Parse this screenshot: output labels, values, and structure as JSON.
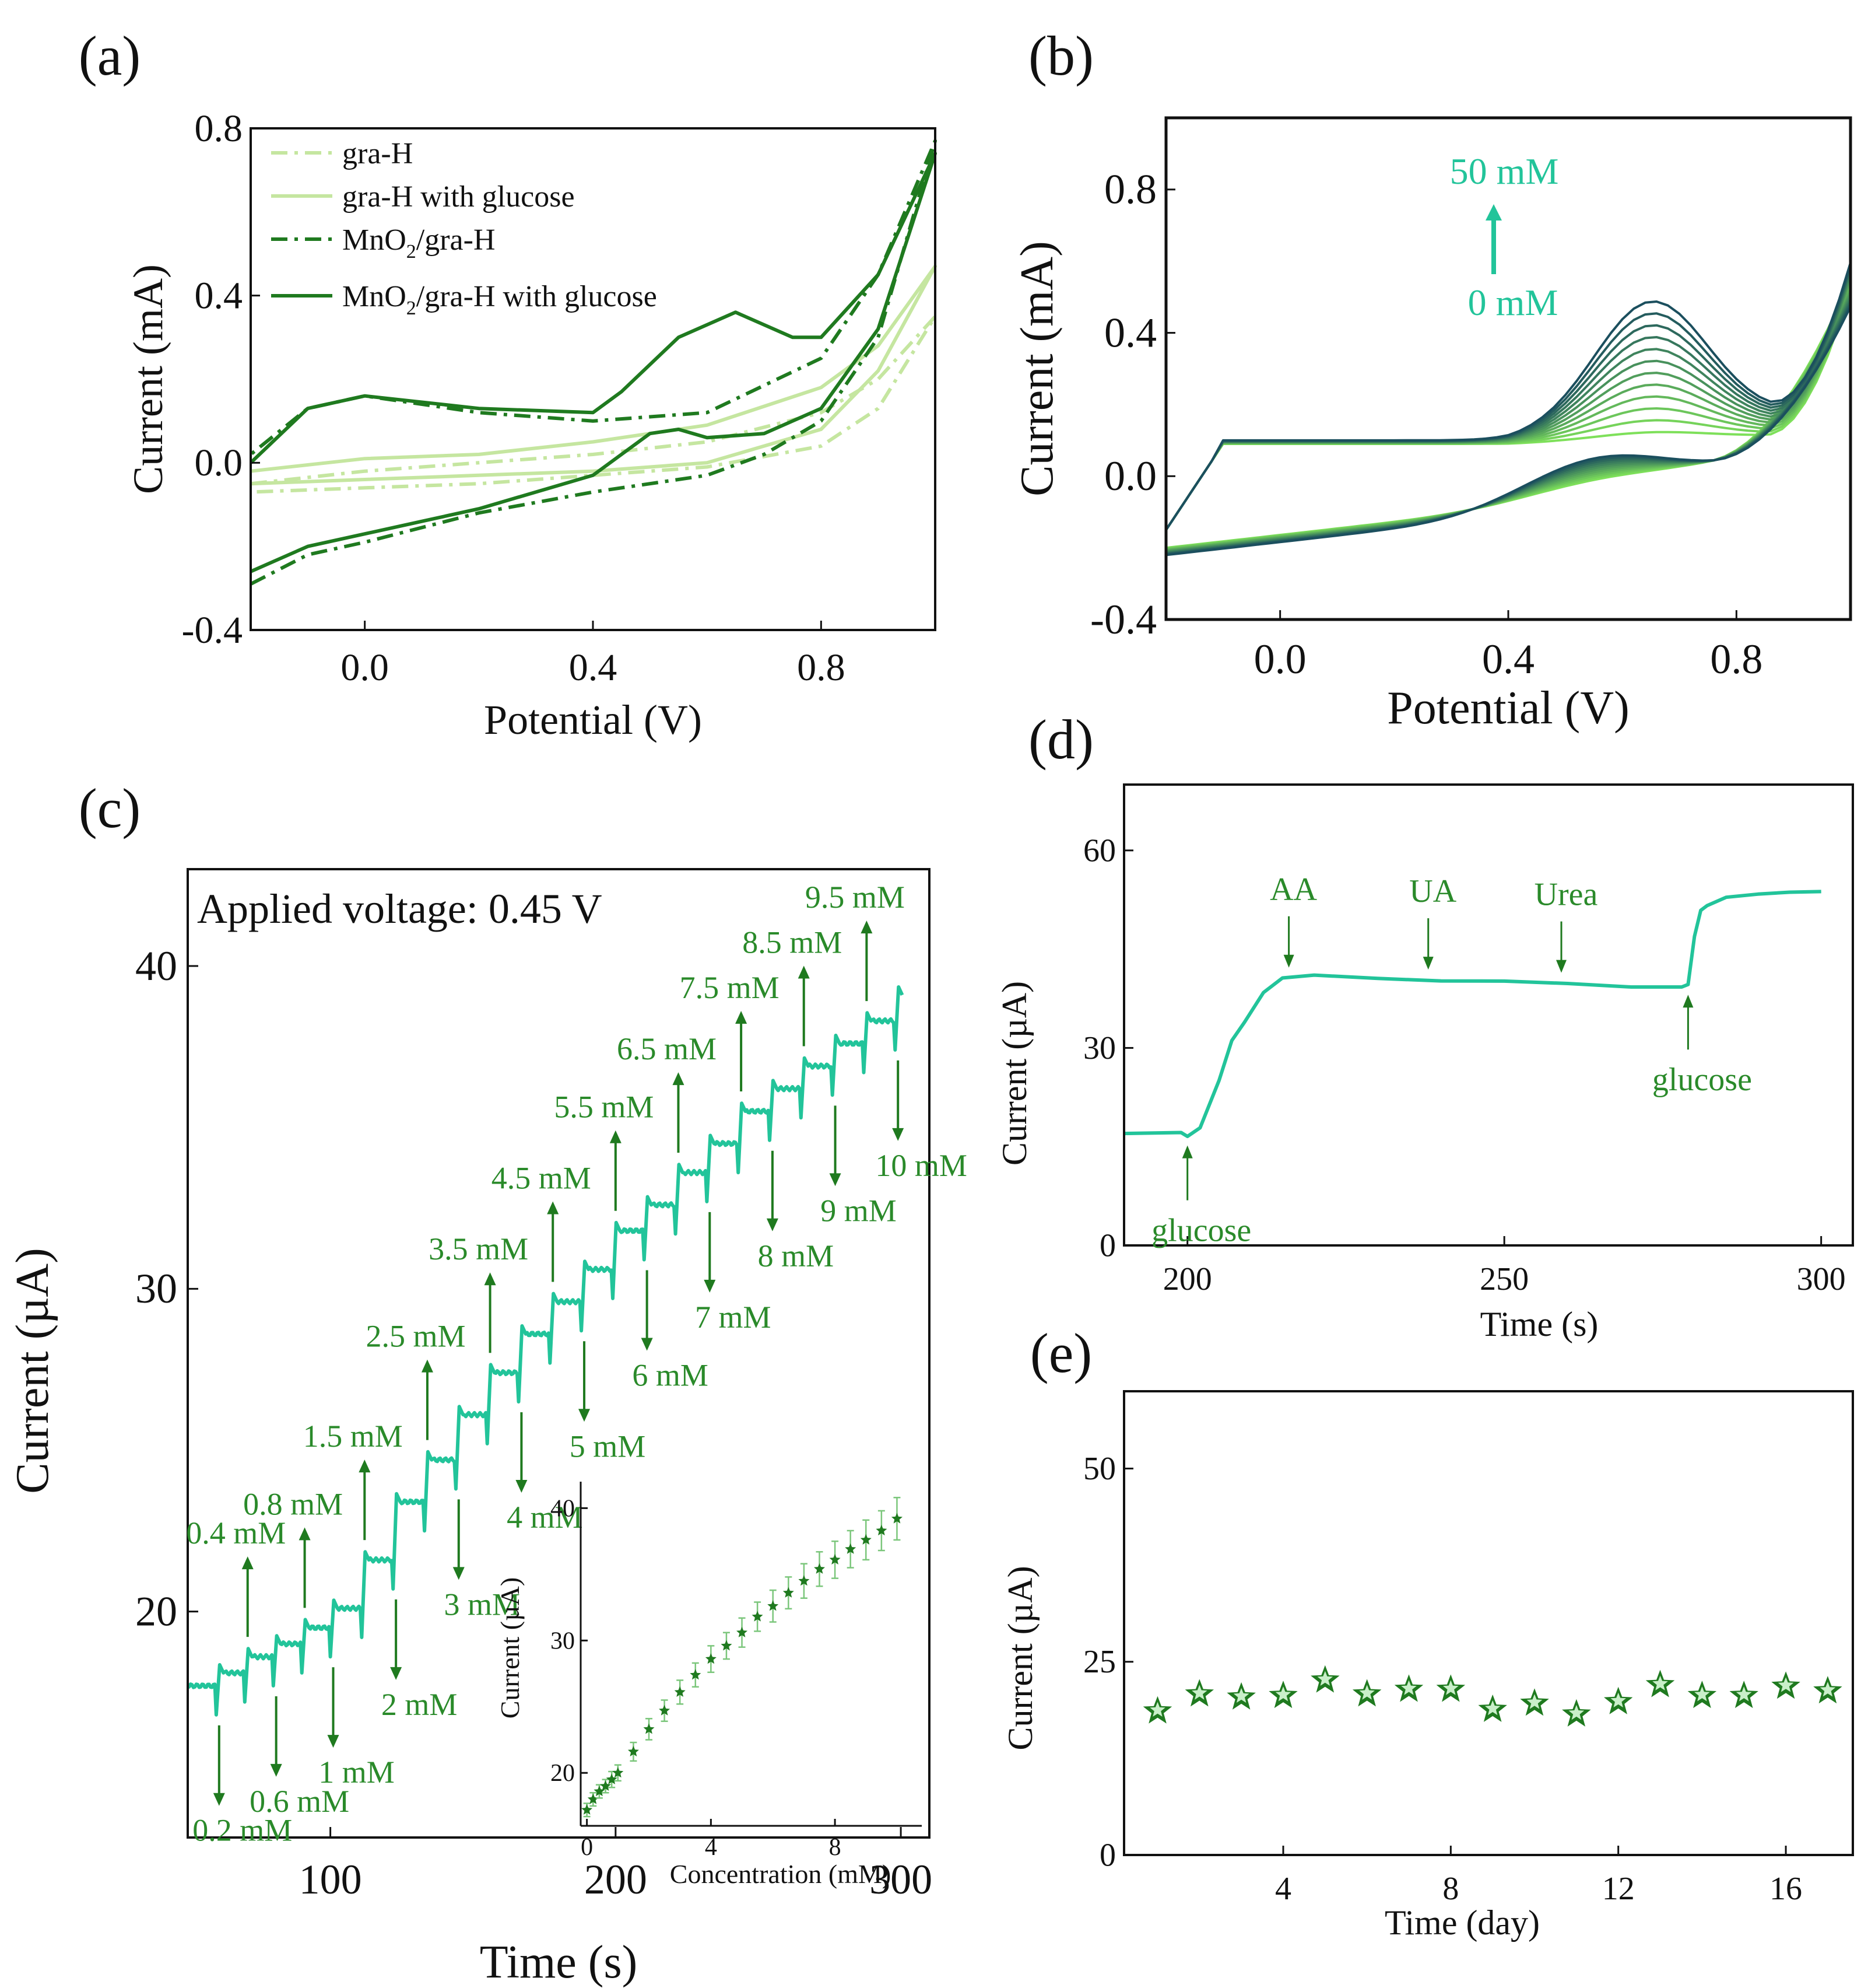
{
  "colors": {
    "lightGreen": "#c5e6a0",
    "darkGreen": "#1f7a1f",
    "annotGreen": "#2a8a2a",
    "teal": "#22c49a",
    "cvDark": "#1b4f5e",
    "cvLight": "#7ee05a",
    "cvMid": "#3a9a3a"
  },
  "chart_data": [
    {
      "panel_label": "(a)",
      "type": "line",
      "xlabel": "Potential (V)",
      "ylabel": "Current  (mA)",
      "xlim": [
        -0.2,
        1.0
      ],
      "ylim": [
        -0.4,
        0.8
      ],
      "xticks": [
        0.0,
        0.4,
        0.8
      ],
      "xtick_labels": [
        "0.0",
        "0.4",
        "0.8"
      ],
      "yticks": [
        -0.4,
        0.0,
        0.4,
        0.8
      ],
      "ytick_labels": [
        "-0.4",
        "0.0",
        "0.4",
        "0.8"
      ],
      "legend": [
        "gra-H",
        "gra-H with glucose",
        "MnO2/gra-H",
        "MnO2/gra-H with glucose"
      ],
      "legend_display": [
        {
          "main": "gra-H",
          "sub": "",
          "tail": ""
        },
        {
          "main": "gra-H with glucose",
          "sub": "",
          "tail": ""
        },
        {
          "main": "MnO",
          "sub": "2",
          "tail": "/gra-H"
        },
        {
          "main": "MnO",
          "sub": "2",
          "tail": "/gra-H with glucose"
        }
      ],
      "legend_position": "top-left",
      "series": [
        {
          "name": "gra-H",
          "style": "dashdot",
          "color": "#c5e6a0",
          "forward": [
            [
              -0.2,
              -0.05
            ],
            [
              0.0,
              -0.02
            ],
            [
              0.2,
              0.0
            ],
            [
              0.4,
              0.02
            ],
            [
              0.6,
              0.05
            ],
            [
              0.8,
              0.12
            ],
            [
              0.9,
              0.2
            ],
            [
              1.0,
              0.35
            ]
          ],
          "reverse": [
            [
              1.0,
              0.35
            ],
            [
              0.9,
              0.13
            ],
            [
              0.8,
              0.04
            ],
            [
              0.6,
              -0.01
            ],
            [
              0.4,
              -0.03
            ],
            [
              0.2,
              -0.05
            ],
            [
              0.0,
              -0.06
            ],
            [
              -0.2,
              -0.07
            ]
          ]
        },
        {
          "name": "gra-H with glucose",
          "style": "solid",
          "color": "#c5e6a0",
          "forward": [
            [
              -0.2,
              -0.02
            ],
            [
              0.0,
              0.01
            ],
            [
              0.2,
              0.02
            ],
            [
              0.4,
              0.05
            ],
            [
              0.6,
              0.09
            ],
            [
              0.8,
              0.18
            ],
            [
              0.9,
              0.28
            ],
            [
              1.0,
              0.47
            ]
          ],
          "reverse": [
            [
              1.0,
              0.47
            ],
            [
              0.9,
              0.22
            ],
            [
              0.8,
              0.08
            ],
            [
              0.6,
              0.0
            ],
            [
              0.4,
              -0.02
            ],
            [
              0.2,
              -0.03
            ],
            [
              0.0,
              -0.04
            ],
            [
              -0.2,
              -0.05
            ]
          ]
        },
        {
          "name": "MnO2/gra-H",
          "style": "dashdot",
          "color": "#1f7a1f",
          "forward": [
            [
              -0.2,
              -0.29
            ],
            [
              -0.1,
              -0.22
            ],
            [
              0.0,
              -0.19
            ],
            [
              0.2,
              -0.12
            ],
            [
              0.4,
              -0.07
            ],
            [
              0.6,
              -0.03
            ],
            [
              0.7,
              0.02
            ],
            [
              0.8,
              0.1
            ],
            [
              0.9,
              0.3
            ],
            [
              1.0,
              0.77
            ]
          ],
          "reverse": [
            [
              1.0,
              0.77
            ],
            [
              0.9,
              0.45
            ],
            [
              0.8,
              0.25
            ],
            [
              0.6,
              0.12
            ],
            [
              0.4,
              0.1
            ],
            [
              0.2,
              0.12
            ],
            [
              0.0,
              0.16
            ],
            [
              -0.1,
              0.13
            ],
            [
              -0.2,
              0.02
            ]
          ]
        },
        {
          "name": "MnO2/gra-H with glucose",
          "style": "solid",
          "color": "#1f7a1f",
          "forward": [
            [
              -0.2,
              -0.26
            ],
            [
              -0.1,
              -0.2
            ],
            [
              0.0,
              -0.17
            ],
            [
              0.2,
              -0.11
            ],
            [
              0.4,
              -0.03
            ],
            [
              0.5,
              0.07
            ],
            [
              0.55,
              0.08
            ],
            [
              0.6,
              0.06
            ],
            [
              0.7,
              0.07
            ],
            [
              0.8,
              0.13
            ],
            [
              0.9,
              0.32
            ],
            [
              1.0,
              0.74
            ]
          ],
          "reverse": [
            [
              1.0,
              0.74
            ],
            [
              0.9,
              0.45
            ],
            [
              0.8,
              0.3
            ],
            [
              0.75,
              0.3
            ],
            [
              0.65,
              0.36
            ],
            [
              0.55,
              0.3
            ],
            [
              0.45,
              0.17
            ],
            [
              0.4,
              0.12
            ],
            [
              0.2,
              0.13
            ],
            [
              0.0,
              0.16
            ],
            [
              -0.1,
              0.13
            ],
            [
              -0.2,
              0.0
            ]
          ]
        }
      ]
    },
    {
      "panel_label": "(b)",
      "type": "line",
      "xlabel": "Potential (V)",
      "ylabel": "Current  (mA)",
      "xlim": [
        -0.2,
        1.0
      ],
      "ylim": [
        -0.4,
        1.0
      ],
      "xticks": [
        0.0,
        0.4,
        0.8
      ],
      "xtick_labels": [
        "0.0",
        "0.4",
        "0.8"
      ],
      "yticks": [
        -0.4,
        0.0,
        0.4,
        0.8
      ],
      "ytick_labels": [
        "-0.4",
        "0.0",
        "0.4",
        "0.8"
      ],
      "annotation_top": "50 mM",
      "annotation_bottom": "0 mM",
      "concentration_range_mM": [
        0,
        50
      ],
      "series_count": 12,
      "oxidation_peak_potential_V": 0.65,
      "oxidation_peak_current_range_mA": [
        0.12,
        0.45
      ]
    },
    {
      "panel_label": "(c)",
      "type": "line",
      "title": "Applied voltage: 0.45 V",
      "xlabel": "Time (s)",
      "ylabel": "Current (µA)",
      "xlim": [
        50,
        310
      ],
      "ylim": [
        13,
        43
      ],
      "xticks": [
        100,
        200,
        300
      ],
      "xtick_labels": [
        "100",
        "200",
        "300"
      ],
      "yticks": [
        20,
        30,
        40
      ],
      "ytick_labels": [
        "20",
        "30",
        "40"
      ],
      "steps": [
        {
          "t": 60,
          "label": "0.2 mM",
          "level": 18.1
        },
        {
          "t": 70,
          "label": "0.4 mM",
          "level": 18.6
        },
        {
          "t": 80,
          "label": "0.6 mM",
          "level": 19.0
        },
        {
          "t": 90,
          "label": "0.8 mM",
          "level": 19.5
        },
        {
          "t": 100,
          "label": "1 mM",
          "level": 20.1
        },
        {
          "t": 111,
          "label": "1.5 mM",
          "level": 21.6
        },
        {
          "t": 122,
          "label": "2 mM",
          "level": 23.4
        },
        {
          "t": 133,
          "label": "2.5 mM",
          "level": 24.7
        },
        {
          "t": 144,
          "label": "3 mM",
          "level": 26.1
        },
        {
          "t": 155,
          "label": "3.5 mM",
          "level": 27.4
        },
        {
          "t": 166,
          "label": "4 mM",
          "level": 28.6
        },
        {
          "t": 177,
          "label": "4.5 mM",
          "level": 29.6
        },
        {
          "t": 188,
          "label": "5 mM",
          "level": 30.6
        },
        {
          "t": 199,
          "label": "5.5 mM",
          "level": 31.8
        },
        {
          "t": 210,
          "label": "6 mM",
          "level": 32.6
        },
        {
          "t": 221,
          "label": "6.5 mM",
          "level": 33.6
        },
        {
          "t": 232,
          "label": "7 mM",
          "level": 34.5
        },
        {
          "t": 243,
          "label": "7.5 mM",
          "level": 35.5
        },
        {
          "t": 254,
          "label": "8 mM",
          "level": 36.2
        },
        {
          "t": 265,
          "label": "8.5 mM",
          "level": 36.9
        },
        {
          "t": 276,
          "label": "9 mM",
          "level": 37.6
        },
        {
          "t": 287,
          "label": "9.5 mM",
          "level": 38.3
        },
        {
          "t": 298,
          "label": "10 mM",
          "level": 39.1
        }
      ],
      "baseline": 17.7,
      "inset": {
        "type": "scatter",
        "xlabel": "Concentration (mM)",
        "ylabel": "Current (µA)",
        "xlim": [
          -0.2,
          10.8
        ],
        "ylim": [
          16,
          42
        ],
        "xticks": [
          0,
          4,
          8
        ],
        "xtick_labels": [
          "0",
          "4",
          "8"
        ],
        "yticks": [
          20,
          30,
          40
        ],
        "ytick_labels": [
          "20",
          "30",
          "40"
        ],
        "x": [
          0,
          0.2,
          0.4,
          0.6,
          0.8,
          1.0,
          1.5,
          2.0,
          2.5,
          3.0,
          3.5,
          4.0,
          4.5,
          5.0,
          5.5,
          6.0,
          6.5,
          7.0,
          7.5,
          8.0,
          8.5,
          9.0,
          9.5,
          10.0
        ],
        "y": [
          17.2,
          18.0,
          18.6,
          19.0,
          19.5,
          20.0,
          21.6,
          23.3,
          24.7,
          26.1,
          27.4,
          28.6,
          29.6,
          30.6,
          31.8,
          32.6,
          33.6,
          34.5,
          35.4,
          36.1,
          36.9,
          37.6,
          38.3,
          39.2
        ],
        "error": [
          0.5,
          0.5,
          0.5,
          0.5,
          0.6,
          0.6,
          0.7,
          0.8,
          0.8,
          0.9,
          0.9,
          1.0,
          1.0,
          1.1,
          1.1,
          1.2,
          1.2,
          1.3,
          1.3,
          1.4,
          1.4,
          1.5,
          1.5,
          1.6
        ]
      }
    },
    {
      "panel_label": "(d)",
      "type": "line",
      "xlabel": "Time (s)",
      "ylabel": "Current (µA)",
      "xlim": [
        190,
        305
      ],
      "ylim": [
        0,
        70
      ],
      "xticks": [
        200,
        250,
        300
      ],
      "xtick_labels": [
        "200",
        "250",
        "300"
      ],
      "yticks": [
        0,
        30,
        60
      ],
      "ytick_labels": [
        "0",
        "30",
        "60"
      ],
      "x": [
        190,
        199,
        200,
        202,
        205,
        207,
        209,
        212,
        215,
        220,
        230,
        240,
        250,
        260,
        270,
        278,
        279,
        280,
        281,
        282,
        285,
        290,
        295,
        300
      ],
      "y": [
        17,
        17,
        16.6,
        18,
        25,
        31,
        34,
        38.5,
        40.5,
        41,
        40.7,
        40.2,
        40,
        39.8,
        39.4,
        39.2,
        39.5,
        47,
        51,
        51.5,
        52.8,
        53.5,
        53.7,
        53.6
      ],
      "annotations": [
        {
          "label": "glucose",
          "t": 200,
          "position": "below"
        },
        {
          "label": "AA",
          "t": 216,
          "position": "above"
        },
        {
          "label": "UA",
          "t": 238,
          "position": "above"
        },
        {
          "label": "Urea",
          "t": 259,
          "position": "above"
        },
        {
          "label": "glucose",
          "t": 279,
          "position": "below"
        }
      ]
    },
    {
      "panel_label": "(e)",
      "type": "scatter",
      "xlabel": "Time (day)",
      "ylabel": "Current (µA)",
      "xlim": [
        0.2,
        17.6
      ],
      "ylim": [
        0,
        60
      ],
      "xticks": [
        4,
        8,
        12,
        16
      ],
      "xtick_labels": [
        "4",
        "8",
        "12",
        "16"
      ],
      "yticks": [
        0,
        25,
        50
      ],
      "ytick_labels": [
        "0",
        "25",
        "50"
      ],
      "x": [
        1,
        2,
        3,
        4,
        5,
        6,
        7,
        8,
        9,
        10,
        11,
        12,
        13,
        14,
        15,
        16,
        17
      ],
      "y": [
        18.6,
        20.8,
        20.4,
        20.6,
        22.6,
        20.8,
        21.4,
        21.4,
        18.8,
        19.6,
        18.2,
        19.8,
        22.0,
        20.6,
        20.6,
        21.8,
        21.2
      ]
    }
  ]
}
